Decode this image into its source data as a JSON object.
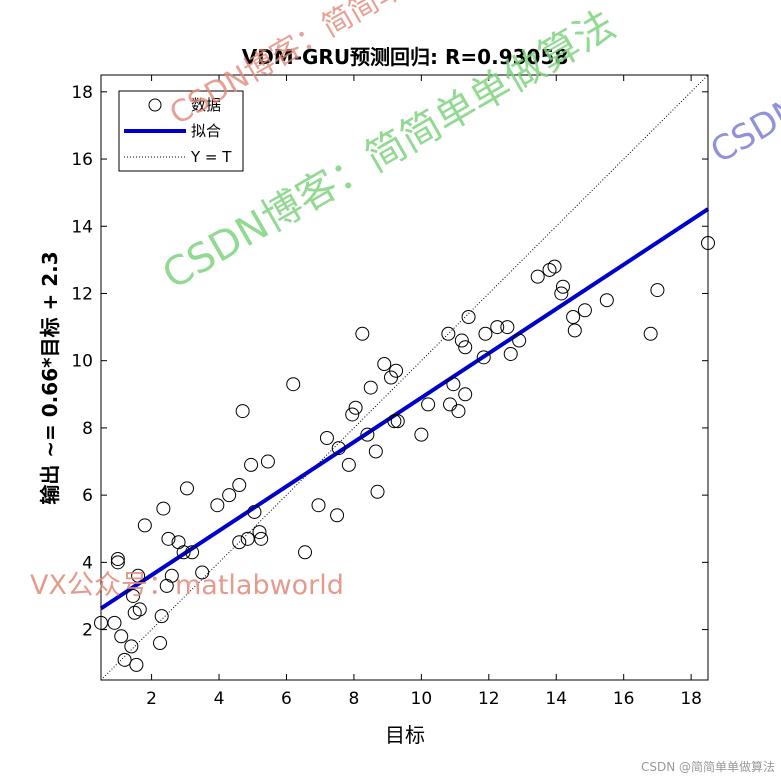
{
  "chart_data": {
    "type": "scatter",
    "title": "VDM-GRU预测回归: R=0.93058",
    "xlabel": "目标",
    "ylabel": "输出 ~= 0.66*目标 + 2.3",
    "xlim": [
      0.5,
      18.5
    ],
    "ylim": [
      0.5,
      18.5
    ],
    "xticks": [
      2,
      4,
      6,
      8,
      10,
      12,
      14,
      16,
      18
    ],
    "yticks": [
      2,
      4,
      6,
      8,
      10,
      12,
      14,
      16,
      18
    ],
    "grid": false,
    "legend_position": "top-left",
    "legend": [
      "数据",
      "拟合",
      "Y = T"
    ],
    "fit": {
      "slope": 0.66,
      "intercept": 2.3
    },
    "series": [
      {
        "name": "数据",
        "style": "circle-marker",
        "color": "#000000",
        "points": [
          [
            0.5,
            2.2
          ],
          [
            0.9,
            2.2
          ],
          [
            1.0,
            4.1
          ],
          [
            1.0,
            4.0
          ],
          [
            1.1,
            1.8
          ],
          [
            1.2,
            1.1
          ],
          [
            1.4,
            1.5
          ],
          [
            1.45,
            3.0
          ],
          [
            1.5,
            2.5
          ],
          [
            1.55,
            0.95
          ],
          [
            1.6,
            3.6
          ],
          [
            1.65,
            2.6
          ],
          [
            1.8,
            5.1
          ],
          [
            2.25,
            1.6
          ],
          [
            2.3,
            2.4
          ],
          [
            2.35,
            5.6
          ],
          [
            2.45,
            3.3
          ],
          [
            2.5,
            4.7
          ],
          [
            2.6,
            3.6
          ],
          [
            2.8,
            4.6
          ],
          [
            2.95,
            4.3
          ],
          [
            3.05,
            6.2
          ],
          [
            3.2,
            4.3
          ],
          [
            3.5,
            3.7
          ],
          [
            3.95,
            5.7
          ],
          [
            4.3,
            6.0
          ],
          [
            4.6,
            6.3
          ],
          [
            4.6,
            4.6
          ],
          [
            4.7,
            8.5
          ],
          [
            4.85,
            4.7
          ],
          [
            4.95,
            6.9
          ],
          [
            5.05,
            5.5
          ],
          [
            5.2,
            4.9
          ],
          [
            5.25,
            4.7
          ],
          [
            5.45,
            7.0
          ],
          [
            6.2,
            9.3
          ],
          [
            6.55,
            4.3
          ],
          [
            6.95,
            5.7
          ],
          [
            7.2,
            7.7
          ],
          [
            7.5,
            5.4
          ],
          [
            7.55,
            7.4
          ],
          [
            7.85,
            6.9
          ],
          [
            7.95,
            8.4
          ],
          [
            8.05,
            8.6
          ],
          [
            8.25,
            10.8
          ],
          [
            8.4,
            7.8
          ],
          [
            8.5,
            9.2
          ],
          [
            8.65,
            7.3
          ],
          [
            8.7,
            6.1
          ],
          [
            8.9,
            9.9
          ],
          [
            9.1,
            9.5
          ],
          [
            9.2,
            8.2
          ],
          [
            9.25,
            9.7
          ],
          [
            9.3,
            8.2
          ],
          [
            10.0,
            7.8
          ],
          [
            10.2,
            8.7
          ],
          [
            10.8,
            10.8
          ],
          [
            10.85,
            8.7
          ],
          [
            10.95,
            9.3
          ],
          [
            11.1,
            8.5
          ],
          [
            11.2,
            10.6
          ],
          [
            11.3,
            10.4
          ],
          [
            11.3,
            9.0
          ],
          [
            11.4,
            11.3
          ],
          [
            11.85,
            10.1
          ],
          [
            11.9,
            10.8
          ],
          [
            12.25,
            11.0
          ],
          [
            12.55,
            11.0
          ],
          [
            12.65,
            10.2
          ],
          [
            12.9,
            10.6
          ],
          [
            13.45,
            12.5
          ],
          [
            13.8,
            12.7
          ],
          [
            13.95,
            12.8
          ],
          [
            14.15,
            12.0
          ],
          [
            14.2,
            12.2
          ],
          [
            14.5,
            11.3
          ],
          [
            14.55,
            10.9
          ],
          [
            14.85,
            11.5
          ],
          [
            15.5,
            11.8
          ],
          [
            16.8,
            10.8
          ],
          [
            17.0,
            12.1
          ],
          [
            18.5,
            13.5
          ]
        ]
      },
      {
        "name": "拟合",
        "style": "line",
        "color": "#0000cc"
      },
      {
        "name": "Y = T",
        "style": "dotted-line",
        "color": "#000000"
      }
    ]
  },
  "watermarks": {
    "green": "CSDN博客：简简单单做算法",
    "red": "CSDN博客：简简单单做算法",
    "blue": "CSDN博客：简简单单做算法",
    "vx": "VX公众号：matlabworld",
    "footer": "CSDN @简简单单做算法"
  }
}
